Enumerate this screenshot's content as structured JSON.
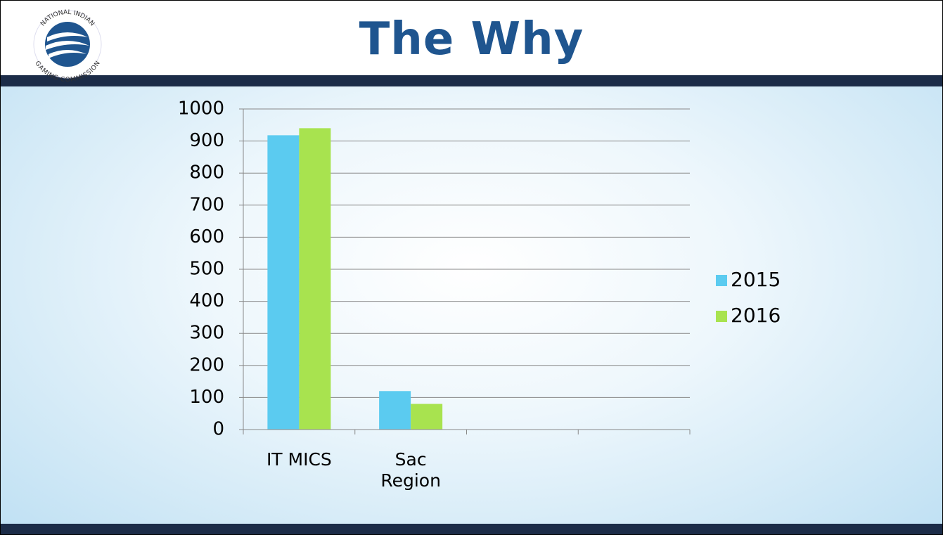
{
  "header": {
    "title": "The Why",
    "logo_top": "NATIONAL INDIAN",
    "logo_bottom": "GAMING COMMISSION"
  },
  "chart_data": {
    "type": "bar",
    "categories": [
      "IT MICS",
      "Sac Region",
      null,
      null
    ],
    "series": [
      {
        "name": "2015",
        "color": "#5bcbf0",
        "values": [
          918,
          120,
          null,
          null
        ]
      },
      {
        "name": "2016",
        "color": "#a8e34f",
        "values": [
          940,
          80,
          null,
          null
        ]
      }
    ],
    "ylim": [
      0,
      1000
    ],
    "yticks": [
      0,
      100,
      200,
      300,
      400,
      500,
      600,
      700,
      800,
      900,
      1000
    ],
    "grid": true,
    "legend": "right"
  }
}
